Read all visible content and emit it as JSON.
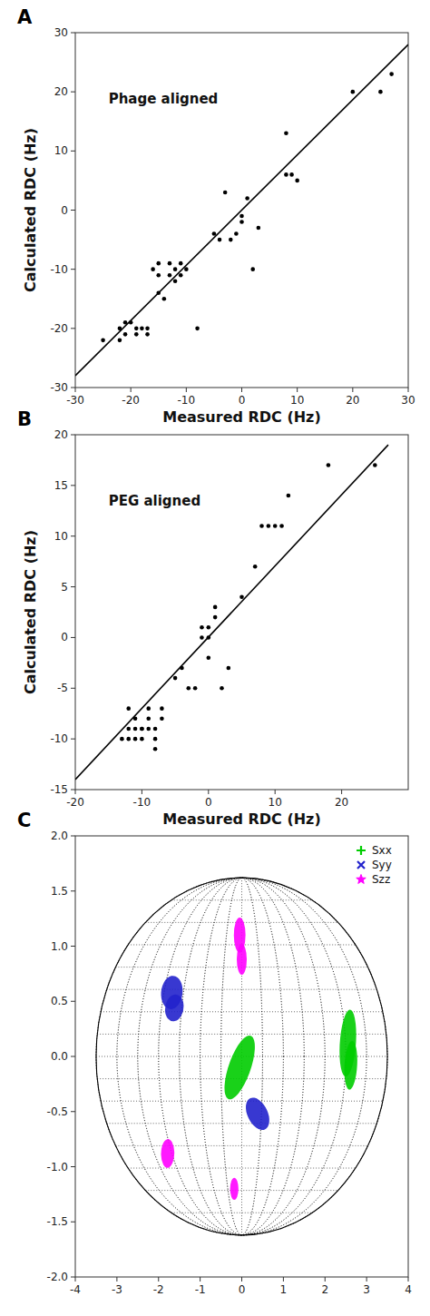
{
  "chart_data": [
    {
      "type": "scatter",
      "annotation": "A",
      "title": "Phage aligned",
      "xlabel": "Measured RDC (Hz)",
      "ylabel": "Calculated RDC (Hz)",
      "xlim": [
        -30,
        30
      ],
      "ylim": [
        -30,
        30
      ],
      "xticks": [
        -30,
        -20,
        -10,
        0,
        10,
        20,
        30
      ],
      "yticks": [
        -30,
        -20,
        -10,
        0,
        10,
        20,
        30
      ],
      "grid": false,
      "series": [
        {
          "type": "scatter",
          "color": "black",
          "marker": "circle",
          "x": [
            -25,
            -22,
            -22,
            -21,
            -21,
            -20,
            -19,
            -19,
            -18,
            -17,
            -17,
            -16,
            -15,
            -15,
            -15,
            -14,
            -13,
            -13,
            -12,
            -12,
            -11,
            -11,
            -10,
            -8,
            -5,
            -4,
            -3,
            -2,
            -1,
            0,
            0,
            1,
            2,
            3,
            8,
            8,
            9,
            10,
            20,
            25,
            27
          ],
          "values": [
            -22,
            -22,
            -20,
            -21,
            -19,
            -19,
            -21,
            -20,
            -20,
            -20,
            -21,
            -10,
            -9,
            -11,
            -14,
            -15,
            -9,
            -11,
            -10,
            -12,
            -11,
            -9,
            -10,
            -20,
            -4,
            -5,
            3,
            -5,
            -4,
            -2,
            -1,
            2,
            -10,
            -3,
            6,
            13,
            6,
            5,
            20,
            20,
            23
          ]
        },
        {
          "type": "line",
          "color": "black",
          "line_style": "solid",
          "x": [
            -30,
            30
          ],
          "values": [
            -28,
            28
          ]
        }
      ]
    },
    {
      "type": "scatter",
      "annotation": "B",
      "title": "PEG aligned",
      "xlabel": "Measured RDC (Hz)",
      "ylabel": "Calculated RDC (Hz)",
      "xlim": [
        -20,
        30
      ],
      "ylim": [
        -15,
        20
      ],
      "xticks": [
        -20,
        -10,
        0,
        10,
        20
      ],
      "yticks": [
        -15,
        -10,
        -5,
        0,
        5,
        10,
        15,
        20
      ],
      "grid": false,
      "series": [
        {
          "type": "scatter",
          "color": "black",
          "marker": "circle",
          "x": [
            -13,
            -12,
            -12,
            -12,
            -11,
            -11,
            -11,
            -10,
            -10,
            -10,
            -9,
            -9,
            -9,
            -8,
            -8,
            -8,
            -7,
            -7,
            -5,
            -4,
            -3,
            -2,
            -1,
            -1,
            0,
            0,
            0,
            1,
            1,
            2,
            3,
            5,
            7,
            8,
            9,
            10,
            11,
            12,
            18,
            25
          ],
          "values": [
            -10,
            -10,
            -9,
            -7,
            -10,
            -9,
            -8,
            -10,
            -9,
            -9,
            -9,
            -8,
            -7,
            -11,
            -10,
            -9,
            -8,
            -7,
            -4,
            -3,
            -5,
            -5,
            0,
            1,
            0,
            1,
            -2,
            3,
            2,
            -5,
            -3,
            4,
            7,
            11,
            11,
            11,
            11,
            14,
            17,
            17
          ]
        },
        {
          "type": "line",
          "color": "black",
          "line_style": "solid",
          "x": [
            -20,
            27
          ],
          "values": [
            -14,
            19
          ]
        }
      ]
    },
    {
      "type": "ellipse",
      "annotation": "C",
      "xlim": [
        -4,
        4
      ],
      "ylim": [
        -2,
        2
      ],
      "xticks": [
        -4,
        -3,
        -2,
        -1,
        0,
        1,
        2,
        3,
        4
      ],
      "yticks": [
        {
          "value": -2,
          "label": "-2.0"
        },
        -1.5,
        {
          "value": -1,
          "label": "-1.0"
        },
        -0.5,
        {
          "value": 0,
          "label": "0.0"
        },
        0.5,
        {
          "value": 1,
          "label": "1.0"
        },
        1.5,
        {
          "value": 2,
          "label": "2.0"
        }
      ],
      "grid": true,
      "grid_ellipse": {
        "a": 3.5,
        "b": 1.62,
        "lat_lines": 17,
        "lon_lines": 15
      },
      "legend": "upper right",
      "series": [
        {
          "name": "Sxx",
          "color": "#00cc00",
          "marker": "plus",
          "ellipses": [
            {
              "cx": -0.05,
              "cy": -0.1,
              "w": 0.38,
              "h": 0.85,
              "angle": -55
            },
            {
              "cx": 2.55,
              "cy": 0.12,
              "w": 0.38,
              "h": 0.62,
              "angle": -15
            },
            {
              "cx": 2.62,
              "cy": -0.08,
              "w": 0.3,
              "h": 0.45,
              "angle": -15
            }
          ]
        },
        {
          "name": "Syy",
          "color": "#2222cc",
          "marker": "x",
          "ellipses": [
            {
              "cx": -1.68,
              "cy": 0.58,
              "w": 0.52,
              "h": 0.3,
              "angle": 5
            },
            {
              "cx": -1.62,
              "cy": 0.44,
              "w": 0.45,
              "h": 0.24,
              "angle": 5
            },
            {
              "cx": 0.38,
              "cy": -0.52,
              "w": 0.58,
              "h": 0.26,
              "angle": -15
            }
          ]
        },
        {
          "name": "Szz",
          "color": "#ff00ff",
          "marker": "star",
          "ellipses": [
            {
              "cx": -0.05,
              "cy": 1.1,
              "w": 0.28,
              "h": 0.32,
              "angle": 0
            },
            {
              "cx": 0.0,
              "cy": 0.88,
              "w": 0.24,
              "h": 0.28,
              "angle": 0
            },
            {
              "cx": -1.78,
              "cy": -0.88,
              "w": 0.32,
              "h": 0.26,
              "angle": 5
            },
            {
              "cx": -0.18,
              "cy": -1.2,
              "w": 0.2,
              "h": 0.2,
              "angle": 0
            }
          ]
        }
      ]
    }
  ]
}
